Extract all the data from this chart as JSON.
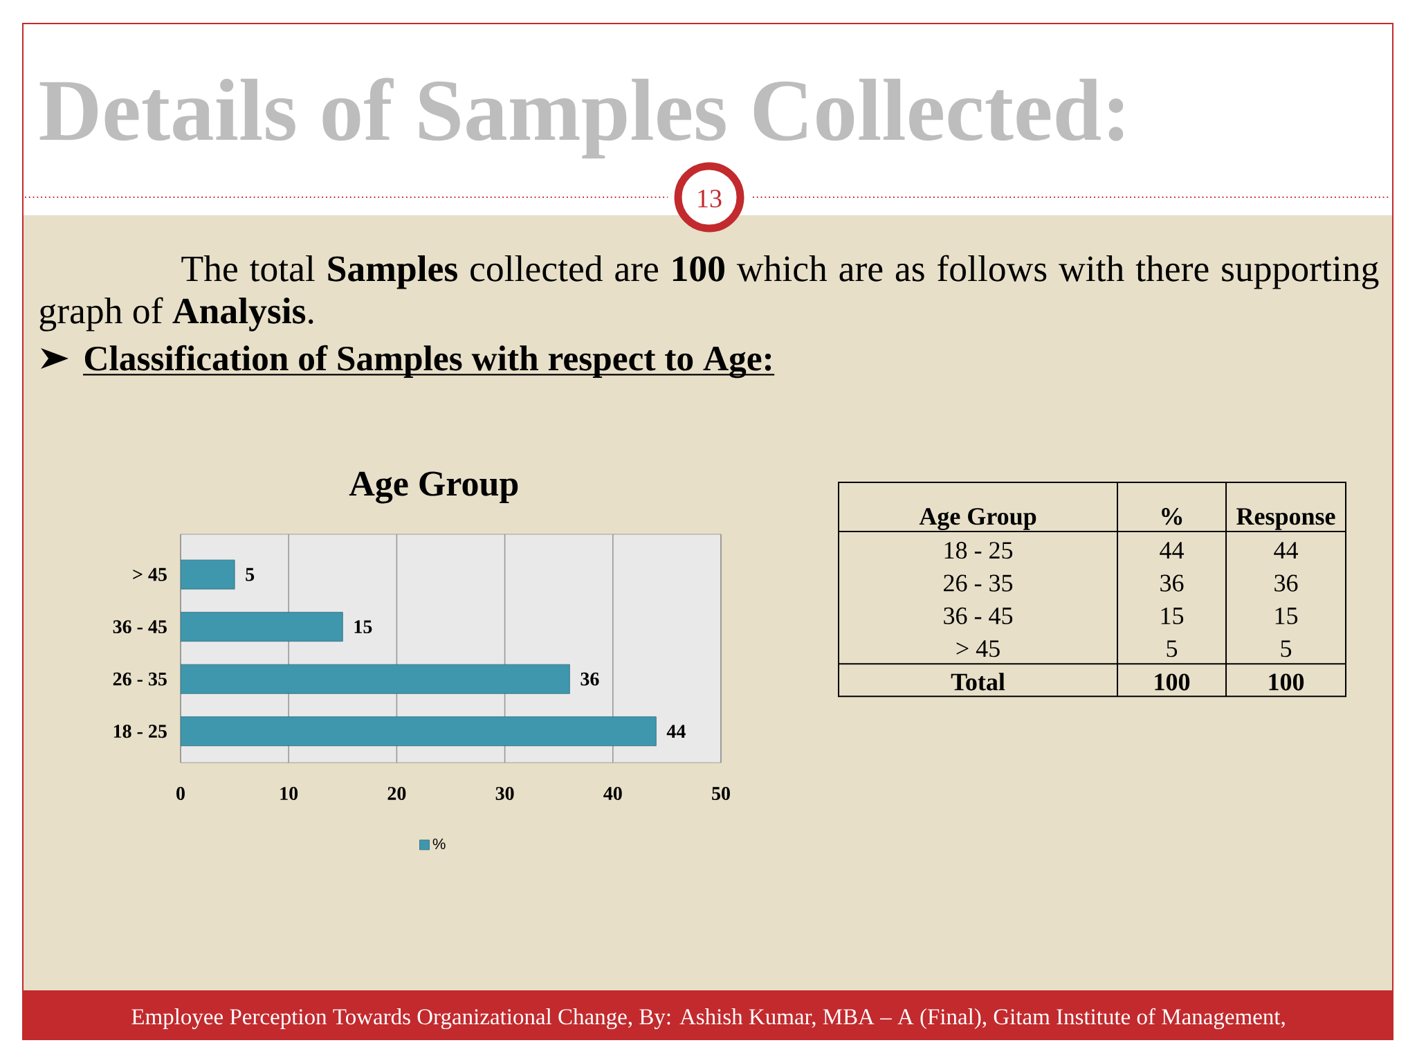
{
  "chart_data": [
    {
      "type": "other",
      "title": "Details of Samples Collected:",
      "subtitle": "The total **Samples** collected are **100** which are as follows with there supporting graph of **Analysis**.",
      "annotations": [
        "Classification of Samples with respect to Age:",
        "13",
        "Employee Perception Towards Organizational Change, By: Ashish Kumar, MBA – A (Final), Gitam Institute of Management,"
      ]
    },
    {
      "type": "bar",
      "orientation": "horizontal",
      "title": "Age Group",
      "categories": [
        "> 45",
        "36 - 45",
        "26 - 35",
        "18 - 25"
      ],
      "series": [
        {
          "name": "%",
          "color": "#3F97AD",
          "values": [
            5,
            15,
            36,
            44
          ]
        }
      ],
      "xlim": [
        0,
        50
      ],
      "xticks": [
        0,
        10,
        20,
        30,
        40,
        50
      ],
      "grid": "x",
      "legend": "bottom",
      "data_labels": true
    },
    {
      "type": "other",
      "categories": [
        "18 - 25",
        "26 - 35",
        "36 - 45",
        "> 45"
      ],
      "series": [
        {
          "name": "%",
          "values": [
            44,
            36,
            15,
            5
          ]
        },
        {
          "name": "Response",
          "values": [
            44,
            36,
            15,
            5
          ]
        }
      ],
      "data_labels": true,
      "annotations": [
        "Age Group",
        "Total"
      ],
      "totals": [
        "100",
        "100"
      ]
    }
  ]
}
